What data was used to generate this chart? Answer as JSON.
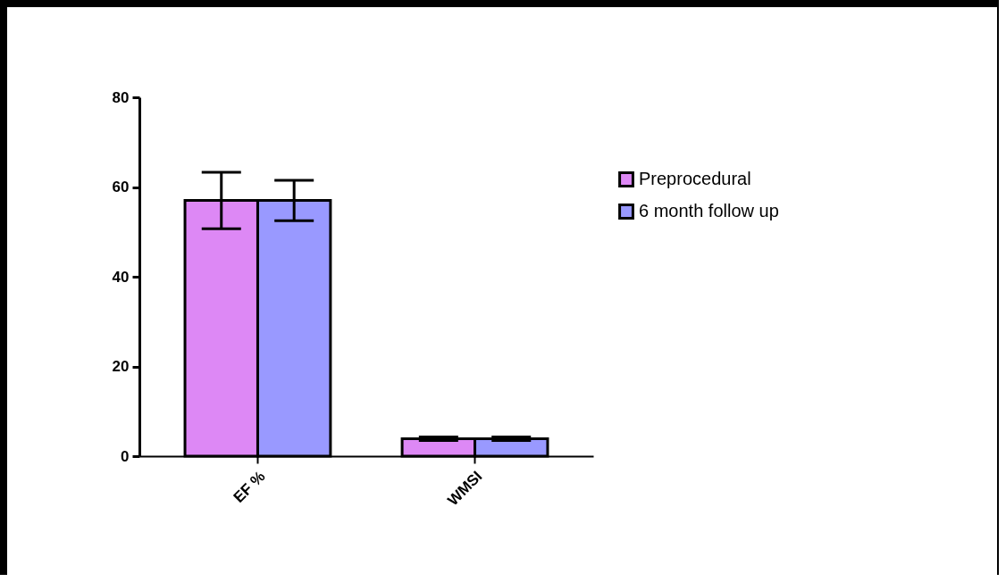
{
  "chart_data": {
    "type": "bar",
    "categories": [
      "EF %",
      "WMSI"
    ],
    "series": [
      {
        "name": "Preprocedural",
        "color": "#dd88f5",
        "values": [
          57.0,
          3.9
        ],
        "errors": [
          6.3,
          0.4
        ]
      },
      {
        "name": " 6 month follow up",
        "color": "#9999ff",
        "values": [
          57.0,
          3.9
        ],
        "errors": [
          4.5,
          0.4
        ]
      }
    ],
    "ylim": [
      0,
      80
    ],
    "yticks": [
      0,
      20,
      40,
      60,
      80
    ],
    "grid": false,
    "legend": "right"
  }
}
